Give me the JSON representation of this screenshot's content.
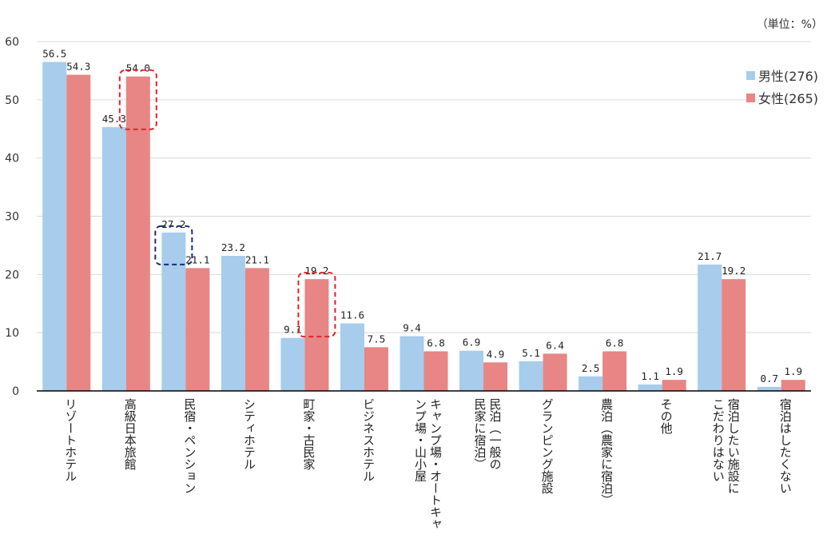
{
  "unit_label": "（単位：%）",
  "colors": {
    "male": "#A7CCEC",
    "female": "#E78685",
    "highlight_red": "#E0242B",
    "highlight_navy": "#1A2D6E"
  },
  "legend": [
    {
      "label": "男性(276)",
      "color": "#A7CCEC"
    },
    {
      "label": "女性(265)",
      "color": "#E78685"
    }
  ],
  "chart_data": {
    "type": "bar",
    "title": "",
    "xlabel": "",
    "ylabel": "",
    "ylim": [
      0,
      60
    ],
    "yticks": [
      0,
      10,
      20,
      30,
      40,
      50,
      60
    ],
    "grid": true,
    "legend_position": "top-right",
    "categories": [
      [
        "リゾートホテル"
      ],
      [
        "高級日本旅館"
      ],
      [
        "民宿・ペンション"
      ],
      [
        "シティホテル"
      ],
      [
        "町家・古民家"
      ],
      [
        "ビジネスホテル"
      ],
      [
        "キャンプ場・オートキャ",
        "ンプ場・山小屋"
      ],
      [
        "民泊（一般の",
        "民家に宿泊）"
      ],
      [
        "グランピング施設"
      ],
      [
        "農泊（農家に宿泊）"
      ],
      [
        "その他"
      ],
      [
        "宿泊したい施設に",
        "こだわりはない"
      ],
      [
        "宿泊はしたくない"
      ]
    ],
    "series": [
      {
        "name": "男性(276)",
        "values": [
          56.5,
          45.3,
          27.2,
          23.2,
          9.1,
          11.6,
          9.4,
          6.9,
          5.1,
          2.5,
          1.1,
          21.7,
          0.7
        ],
        "labels": [
          "56.5",
          "45.3",
          "27.2",
          "23.2",
          "9.1",
          "11.6",
          "9.4",
          "6.9",
          "5.1",
          "2.5",
          "1.1",
          "21.7",
          "0.7"
        ]
      },
      {
        "name": "女性(265)",
        "values": [
          54.3,
          54.0,
          21.1,
          21.1,
          19.2,
          7.5,
          6.8,
          4.9,
          6.4,
          6.8,
          1.9,
          19.2,
          1.9
        ],
        "labels": [
          "54.3",
          "54.0",
          "21.1",
          "21.1",
          "19.2",
          "7.5",
          "6.8",
          "4.9",
          "6.4",
          "6.8",
          "1.9",
          "19.2",
          "1.9"
        ]
      }
    ],
    "highlights": [
      {
        "category_index": 1,
        "series_index": 1,
        "color": "red"
      },
      {
        "category_index": 2,
        "series_index": 0,
        "color": "navy"
      },
      {
        "category_index": 4,
        "series_index": 1,
        "color": "red"
      }
    ]
  }
}
